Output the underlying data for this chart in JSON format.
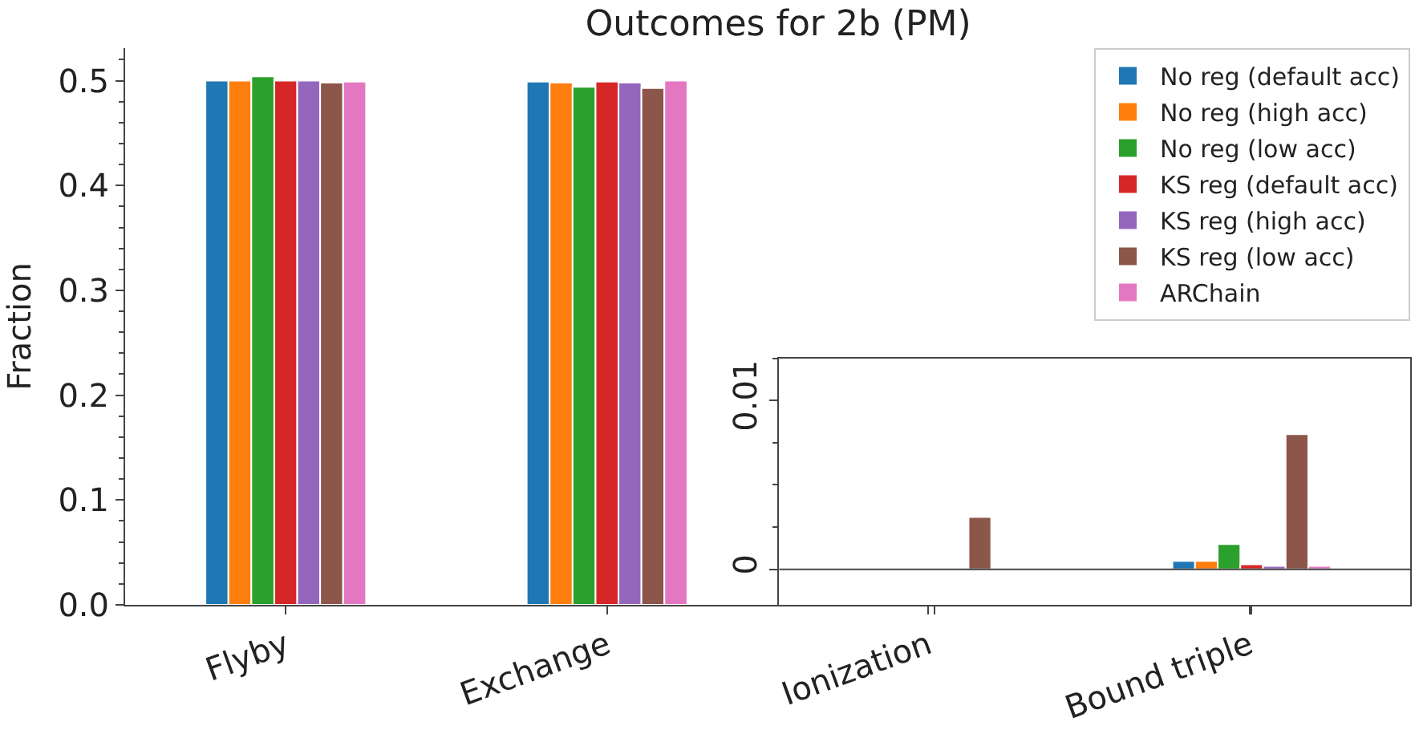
{
  "chart_data": [
    {
      "type": "bar",
      "title": "Outcomes for 2b (PM)",
      "ylabel": "Fraction",
      "categories": [
        "Flyby",
        "Exchange",
        "Ionization",
        "Bound triple"
      ],
      "ylim": [
        0,
        0.531
      ],
      "yticks": [
        {
          "value": 0,
          "label": "0.0"
        },
        0.1,
        0.2,
        0.3,
        0.4,
        {
          "value": 0.5,
          "label": "0.5"
        }
      ],
      "legend": "top right",
      "series": [
        {
          "name": "No reg (default acc)",
          "color": "#1f77b4",
          "values": [
            0.5,
            0.499,
            null,
            null
          ]
        },
        {
          "name": "No reg (high acc)",
          "color": "#ff7f0e",
          "values": [
            0.5,
            0.498,
            null,
            null
          ]
        },
        {
          "name": "No reg (low acc)",
          "color": "#2ca02c",
          "values": [
            0.504,
            0.494,
            null,
            null
          ]
        },
        {
          "name": "KS reg (default acc)",
          "color": "#d62728",
          "values": [
            0.5,
            0.499,
            null,
            null
          ]
        },
        {
          "name": "KS reg (high acc)",
          "color": "#9467bd",
          "values": [
            0.5,
            0.498,
            null,
            null
          ]
        },
        {
          "name": "KS reg (low acc)",
          "color": "#8c564b",
          "values": [
            0.498,
            0.493,
            null,
            null
          ]
        },
        {
          "name": "ARChain",
          "color": "#e377c2",
          "values": [
            0.499,
            0.5,
            null,
            null
          ]
        }
      ]
    },
    {
      "type": "bar",
      "categories": [
        null,
        null
      ],
      "ylim": [
        -0.0021,
        0.0125
      ],
      "yticks": [
        0,
        0.01
      ],
      "tick_labels": "y",
      "ref_lines": [
        {
          "axis": "y",
          "value": 0,
          "color": "#444444"
        }
      ],
      "series": [
        {
          "color": "#1f77b4",
          "values": [
            null,
            0.0005
          ]
        },
        {
          "color": "#ff7f0e",
          "values": [
            null,
            0.0005
          ]
        },
        {
          "color": "#2ca02c",
          "values": [
            null,
            0.0015
          ]
        },
        {
          "color": "#d62728",
          "values": [
            null,
            0.0003
          ]
        },
        {
          "color": "#9467bd",
          "values": [
            null,
            0.0002
          ]
        },
        {
          "color": "#8c564b",
          "values": [
            0.0031,
            0.008
          ]
        },
        {
          "color": "#e377c2",
          "values": [
            null,
            0.0002
          ]
        }
      ]
    }
  ]
}
